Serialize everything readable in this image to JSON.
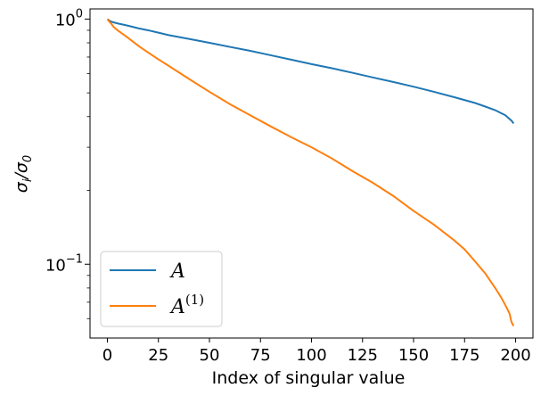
{
  "chart_data": {
    "type": "line",
    "xlabel": "Index of singular value",
    "ylabel": "σ_i/σ_0",
    "xlim": [
      -8.5,
      208.5
    ],
    "ylim": [
      0.05,
      1.1
    ],
    "yscale": "log",
    "grid": false,
    "legend_position": "lower-left",
    "x_ticks": [
      {
        "value": 0,
        "label": "0"
      },
      {
        "value": 25,
        "label": "25"
      },
      {
        "value": 50,
        "label": "50"
      },
      {
        "value": 75,
        "label": "75"
      },
      {
        "value": 100,
        "label": "100"
      },
      {
        "value": 125,
        "label": "125"
      },
      {
        "value": 150,
        "label": "150"
      },
      {
        "value": 175,
        "label": "175"
      },
      {
        "value": 200,
        "label": "200"
      }
    ],
    "y_major_ticks": [
      {
        "value": 1,
        "base": "10",
        "exp": "0"
      },
      {
        "value": 0.1,
        "base": "10",
        "exp": "−1"
      }
    ],
    "y_minor_ticks": [
      0.06,
      0.07,
      0.08,
      0.09,
      0.2,
      0.3,
      0.4,
      0.5,
      0.6,
      0.7,
      0.8,
      0.9
    ],
    "series": [
      {
        "name": "A",
        "name_sup": "",
        "color": "#1f77b4",
        "x": [
          0,
          1,
          2,
          5,
          10,
          15,
          20,
          25,
          30,
          40,
          50,
          60,
          70,
          80,
          90,
          100,
          110,
          120,
          130,
          140,
          150,
          160,
          170,
          180,
          185,
          190,
          195,
          198,
          199
        ],
        "y": [
          1.0,
          0.985,
          0.975,
          0.96,
          0.94,
          0.918,
          0.9,
          0.88,
          0.86,
          0.83,
          0.8,
          0.77,
          0.742,
          0.712,
          0.683,
          0.655,
          0.63,
          0.604,
          0.578,
          0.554,
          0.53,
          0.505,
          0.48,
          0.455,
          0.44,
          0.425,
          0.405,
          0.385,
          0.375
        ]
      },
      {
        "name": "A",
        "name_sup": "(1)",
        "color": "#ff7f0e",
        "x": [
          0,
          1,
          2,
          3,
          5,
          10,
          15,
          20,
          25,
          30,
          40,
          50,
          60,
          70,
          80,
          90,
          100,
          110,
          120,
          130,
          140,
          150,
          160,
          170,
          175,
          180,
          185,
          190,
          193,
          195,
          197,
          198,
          199
        ],
        "y": [
          1.0,
          0.975,
          0.955,
          0.93,
          0.9,
          0.84,
          0.78,
          0.73,
          0.685,
          0.645,
          0.57,
          0.505,
          0.45,
          0.405,
          0.365,
          0.33,
          0.3,
          0.27,
          0.24,
          0.215,
          0.19,
          0.165,
          0.145,
          0.125,
          0.115,
          0.103,
          0.092,
          0.08,
          0.073,
          0.068,
          0.063,
          0.058,
          0.056
        ]
      }
    ]
  }
}
